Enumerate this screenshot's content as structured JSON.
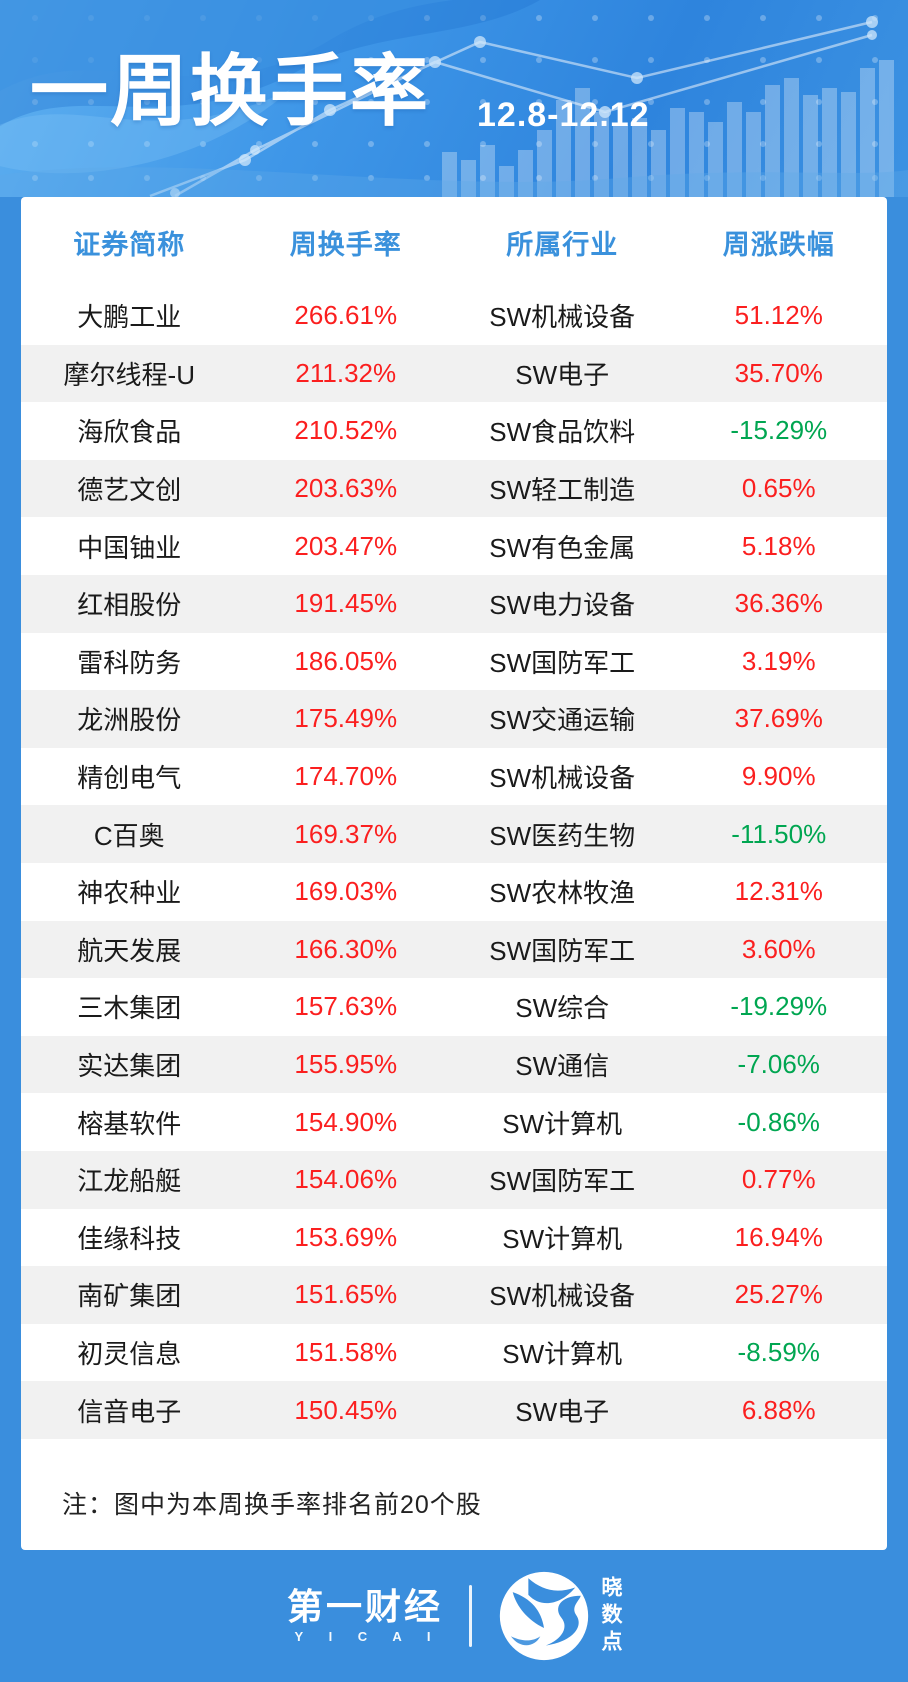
{
  "header": {
    "title": "一周换手率",
    "date_range": "12.8-12.12"
  },
  "chart_data": {
    "type": "table",
    "title": "一周换手率",
    "period": "12.8-12.12",
    "columns": [
      "证券简称",
      "周换手率",
      "所属行业",
      "周涨跌幅"
    ],
    "rows": [
      [
        "大鹏工业",
        "266.61%",
        "SW机械设备",
        "51.12%"
      ],
      [
        "摩尔线程-U",
        "211.32%",
        "SW电子",
        "35.70%"
      ],
      [
        "海欣食品",
        "210.52%",
        "SW食品饮料",
        "-15.29%"
      ],
      [
        "德艺文创",
        "203.63%",
        "SW轻工制造",
        "0.65%"
      ],
      [
        "中国铀业",
        "203.47%",
        "SW有色金属",
        "5.18%"
      ],
      [
        "红相股份",
        "191.45%",
        "SW电力设备",
        "36.36%"
      ],
      [
        "雷科防务",
        "186.05%",
        "SW国防军工",
        "3.19%"
      ],
      [
        "龙洲股份",
        "175.49%",
        "SW交通运输",
        "37.69%"
      ],
      [
        "精创电气",
        "174.70%",
        "SW机械设备",
        "9.90%"
      ],
      [
        "C百奥",
        "169.37%",
        "SW医药生物",
        "-11.50%"
      ],
      [
        "神农种业",
        "169.03%",
        "SW农林牧渔",
        "12.31%"
      ],
      [
        "航天发展",
        "166.30%",
        "SW国防军工",
        "3.60%"
      ],
      [
        "三木集团",
        "157.63%",
        "SW综合",
        "-19.29%"
      ],
      [
        "实达集团",
        "155.95%",
        "SW通信",
        "-7.06%"
      ],
      [
        "榕基软件",
        "154.90%",
        "SW计算机",
        "-0.86%"
      ],
      [
        "江龙船艇",
        "154.06%",
        "SW国防军工",
        "0.77%"
      ],
      [
        "佳缘科技",
        "153.69%",
        "SW计算机",
        "16.94%"
      ],
      [
        "南矿集团",
        "151.65%",
        "SW机械设备",
        "25.27%"
      ],
      [
        "初灵信息",
        "151.58%",
        "SW计算机",
        "-8.59%"
      ],
      [
        "信音电子",
        "150.45%",
        "SW电子",
        "6.88%"
      ]
    ]
  },
  "note": "注：图中为本周换手率排名前20个股",
  "footer": {
    "brand_left": "第一财经",
    "brand_left_sub": "Y I C A I",
    "brand_right": "晓数点"
  },
  "colors": {
    "page_blue": "#3a8edd",
    "header_text_blue": "#3a91dc",
    "value_red": "#fb1f1f",
    "value_green": "#00a651",
    "row_alt_gray": "#f1f1f1"
  }
}
